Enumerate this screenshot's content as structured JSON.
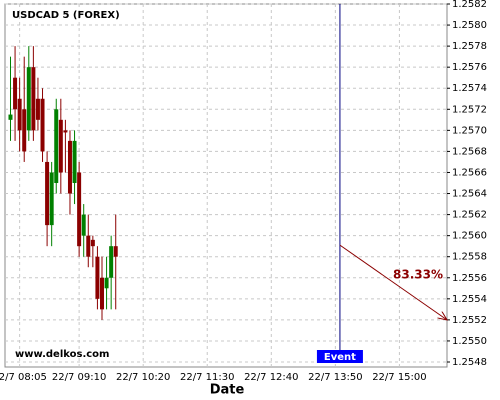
{
  "chart_data": {
    "type": "candlestick",
    "title": "USDCAD 5 (FOREX)",
    "watermark": "www.delkos.com",
    "x_label": "Date",
    "up_color": "#008000",
    "down_color": "#8b0000",
    "x": [
      "22/7 07:55",
      "22/7 08:00",
      "22/7 08:05",
      "22/7 08:10",
      "22/7 08:15",
      "22/7 08:20",
      "22/7 08:25",
      "22/7 08:30",
      "22/7 08:35",
      "22/7 08:40",
      "22/7 08:45",
      "22/7 08:50",
      "22/7 08:55",
      "22/7 09:00",
      "22/7 09:05",
      "22/7 09:10",
      "22/7 09:15",
      "22/7 09:20",
      "22/7 09:25",
      "22/7 09:30",
      "22/7 09:35",
      "22/7 09:40",
      "22/7 09:45",
      "22/7 09:50"
    ],
    "open": [
      1.2571,
      1.2575,
      1.2573,
      1.2572,
      1.257,
      1.2576,
      1.2573,
      1.2573,
      1.2567,
      1.2561,
      1.2565,
      1.2571,
      1.257,
      1.2569,
      1.2565,
      1.2566,
      1.256,
      1.256,
      1.25596,
      1.2558,
      1.2556,
      1.2555,
      1.2556,
      1.2559
    ],
    "high": [
      1.2577,
      1.2578,
      1.2575,
      1.2577,
      1.2578,
      1.2578,
      1.2575,
      1.2574,
      1.2568,
      1.2567,
      1.2573,
      1.2573,
      1.2571,
      1.257,
      1.257,
      1.2567,
      1.2563,
      1.2562,
      1.256,
      1.2559,
      1.2558,
      1.2558,
      1.256,
      1.2562
    ],
    "low": [
      1.2569,
      1.2569,
      1.2568,
      1.2567,
      1.2569,
      1.2569,
      1.257,
      1.2567,
      1.2559,
      1.2559,
      1.2564,
      1.2564,
      1.2566,
      1.2562,
      1.2563,
      1.2558,
      1.2558,
      1.2557,
      1.2557,
      1.2553,
      1.2552,
      1.2553,
      1.2553,
      1.2553
    ],
    "close": [
      1.25715,
      1.2572,
      1.257,
      1.2568,
      1.2576,
      1.257,
      1.2571,
      1.2568,
      1.2561,
      1.2566,
      1.2572,
      1.2566,
      1.25698,
      1.2564,
      1.2569,
      1.2559,
      1.2562,
      1.2558,
      1.2559,
      1.2554,
      1.2553,
      1.2556,
      1.2559,
      1.2558
    ],
    "xlim": [
      "22/7 07:49",
      "22/7 15:52"
    ],
    "xticks": [
      "22/7 08:05",
      "22/7 09:10",
      "22/7 10:20",
      "22/7 11:30",
      "22/7 12:40",
      "22/7 13:50",
      "22/7 15:00"
    ],
    "ylim": [
      1.2548,
      1.2582
    ],
    "yticks": [
      1.2548,
      {
        "value": 1.255,
        "label": "1.2550"
      },
      1.2552,
      1.2554,
      1.2556,
      1.2558,
      {
        "value": 1.256,
        "label": "1.2560"
      },
      1.2562,
      1.2564,
      1.2566,
      1.2568,
      {
        "value": 1.257,
        "label": "1.2570"
      },
      1.2572,
      1.2574,
      1.2576,
      1.2578,
      {
        "value": 1.258,
        "label": "1.2580"
      },
      1.2582
    ],
    "grid": true,
    "event": {
      "label": "Event",
      "x": "22/7 13:55",
      "color": "#000080",
      "box_color": "#0000ff"
    },
    "forecast": {
      "from_x": "22/7 13:55",
      "from_y": 1.25591,
      "to_x": "22/7 15:52",
      "to_y": 1.2552,
      "label": "83.33%",
      "color": "#8b0000"
    }
  }
}
